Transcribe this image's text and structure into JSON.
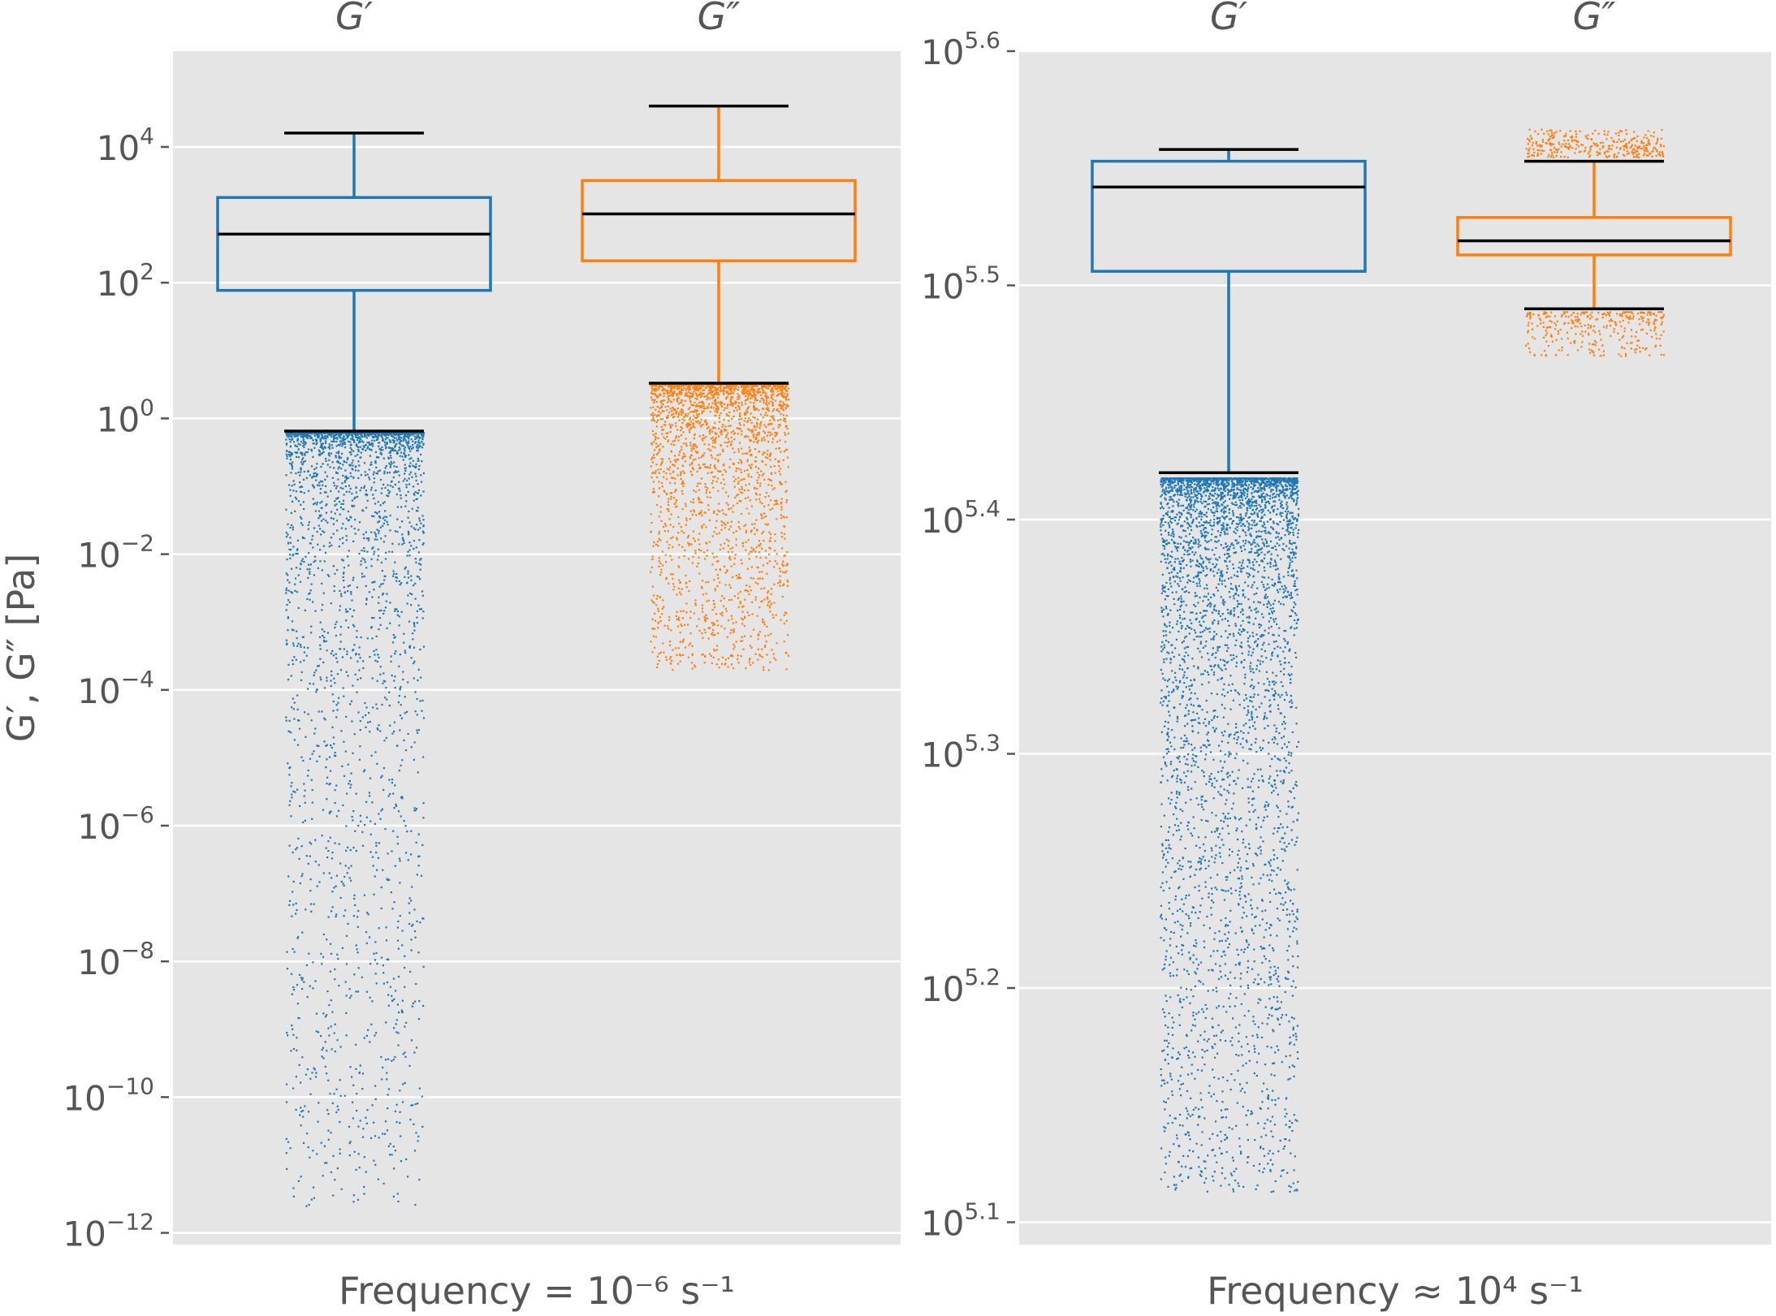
{
  "figure": {
    "ylabel": "G′, G″ [Pa]"
  },
  "chart_data": [
    {
      "type": "box",
      "log_scale_y": true,
      "grid": true,
      "ylabel": "G′, G″ [Pa]",
      "xlabel": "Frequency = 10⁻⁶ s⁻¹",
      "ylim_log10": [
        -12.2,
        5.4
      ],
      "y_ticks_log10": [
        -12,
        -10,
        -8,
        -6,
        -4,
        -2,
        0,
        2,
        4
      ],
      "tick_labels": [
        "10⁻¹²",
        "10⁻¹⁰",
        "10⁻⁸",
        "10⁻⁶",
        "10⁻⁴",
        "10⁻²",
        "10⁰",
        "10²",
        "10⁴"
      ],
      "categories": [
        "G′",
        "G″"
      ],
      "series": [
        {
          "name": "G′",
          "color": "#1f77b4",
          "whisker_low": 0.65,
          "q1": 77,
          "median": 520,
          "q3": 1800,
          "whisker_high": 16000,
          "outliers_log10_range": [
            -11.6,
            -0.2
          ]
        },
        {
          "name": "G″",
          "color": "#ff7f0e",
          "whisker_low": 3.3,
          "q1": 210,
          "median": 1030,
          "q3": 3200,
          "whisker_high": 40000,
          "outliers_log10_range": [
            -3.7,
            0.52
          ]
        }
      ]
    },
    {
      "type": "box",
      "log_scale_y": true,
      "grid": true,
      "xlabel": "Frequency ≈ 10⁴ s⁻¹",
      "ylim_log10": [
        5.09,
        5.6
      ],
      "y_ticks_log10": [
        5.1,
        5.2,
        5.3,
        5.4,
        5.5,
        5.6
      ],
      "tick_labels": [
        "10⁵·¹",
        "10⁵·²",
        "10⁵·³",
        "10⁵·⁴",
        "10⁵·⁵",
        "10⁵·⁶"
      ],
      "categories": [
        "G′",
        "G″"
      ],
      "series": [
        {
          "name": "G′",
          "color": "#1f77b4",
          "whisker_low_log10": 5.42,
          "q1_log10": 5.506,
          "median_log10": 5.542,
          "q3_log10": 5.553,
          "whisker_high_log10": 5.558,
          "outliers_log10_range": [
            5.113,
            5.418
          ]
        },
        {
          "name": "G″",
          "color": "#ff7f0e",
          "whisker_low_log10": 5.49,
          "q1_log10": 5.513,
          "median_log10": 5.519,
          "q3_log10": 5.529,
          "whisker_high_log10": 5.553,
          "outliers_low_log10_range": [
            5.47,
            5.489
          ],
          "outliers_high_log10_range": [
            5.555,
            5.567
          ]
        }
      ]
    }
  ]
}
